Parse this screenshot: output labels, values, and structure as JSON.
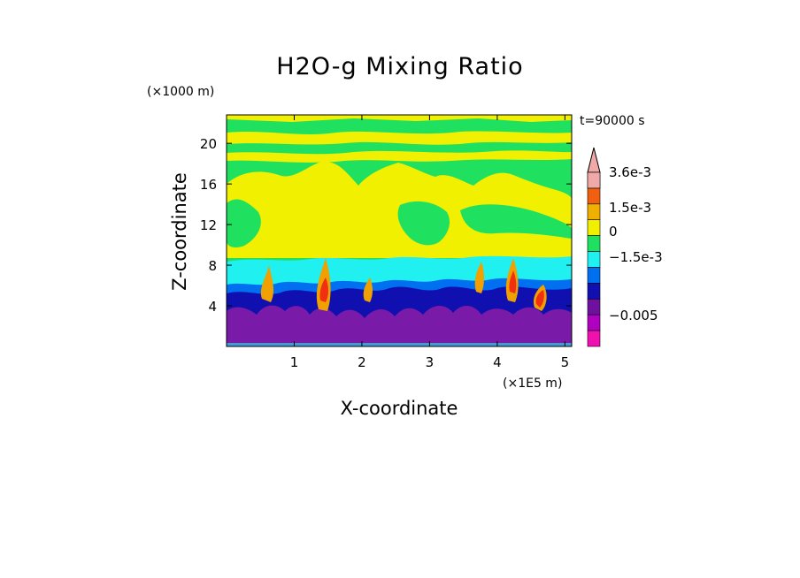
{
  "chart_data": {
    "type": "heatmap",
    "title": "H2O-g Mixing Ratio",
    "xlabel": "X-coordinate",
    "ylabel": "Z-coordinate",
    "x_unit": "(×1E5 m)",
    "y_unit": "(×1000 m)",
    "time_label": "t=90000 s",
    "xlim": [
      0,
      5.1
    ],
    "ylim": [
      0,
      22.8
    ],
    "x_ticks": [
      "1",
      "2",
      "3",
      "4",
      "5"
    ],
    "x_tick_values": [
      1,
      2,
      3,
      4,
      5
    ],
    "y_ticks": [
      "4",
      "8",
      "12",
      "16",
      "20"
    ],
    "y_tick_values": [
      4,
      8,
      12,
      16,
      20
    ],
    "colorbar": {
      "labels": [
        "3.6e-3",
        "1.5e-3",
        "0",
        "−1.5e-3",
        "−0.005"
      ],
      "colors": [
        "#f0a8a8",
        "#f01818",
        "#f06010",
        "#f0b000",
        "#f0f000",
        "#20e060",
        "#20f0f0",
        "#0070f0",
        "#1010b0",
        "#7010a0",
        "#b000c0",
        "#f010b0"
      ]
    },
    "palette": {
      "magenta": "#f010b0",
      "purple": "#7a1aa8",
      "navy": "#1010b0",
      "blue": "#0070f0",
      "cyan": "#20f0f0",
      "green": "#20e060",
      "yellow": "#f0f000",
      "orange": "#f0a000",
      "red": "#f03010"
    }
  }
}
